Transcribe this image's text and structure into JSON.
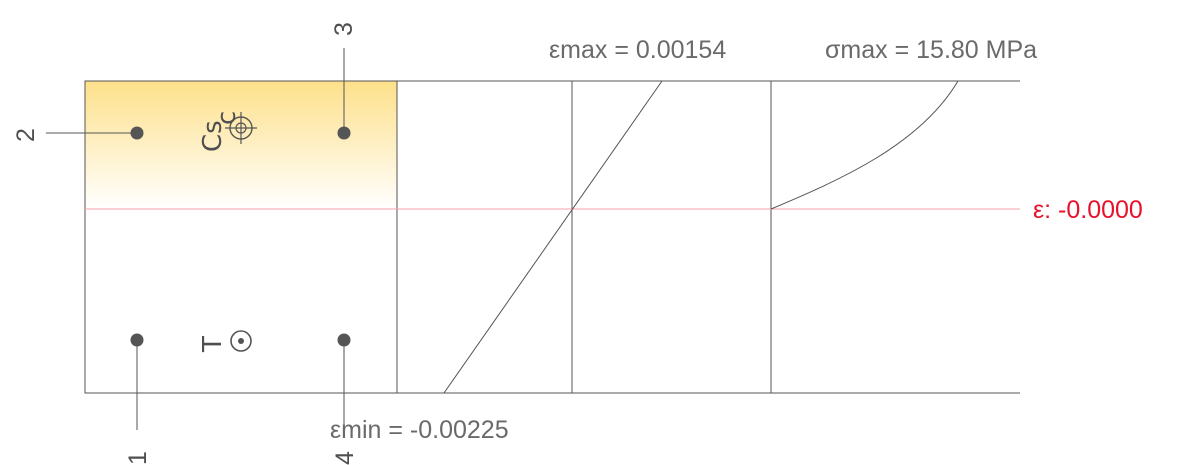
{
  "labels": {
    "eps_max": "εmax = 0.00154",
    "sigma_max": "σmax = 15.80 MPa",
    "eps_min": "εmin = -0.00225",
    "neutral_axis": "ε: -0.0000"
  },
  "section": {
    "centroid_symbol": "Cs",
    "compression_symbol": "c",
    "tension_symbol": "T"
  },
  "rebars": [
    {
      "id": "1"
    },
    {
      "id": "2"
    },
    {
      "id": "3"
    },
    {
      "id": "4"
    }
  ],
  "colors": {
    "compression_fill": "#fde08a",
    "neutral_axis": "#e8102a",
    "lines": "#555555",
    "text": "#6a6a6a"
  }
}
